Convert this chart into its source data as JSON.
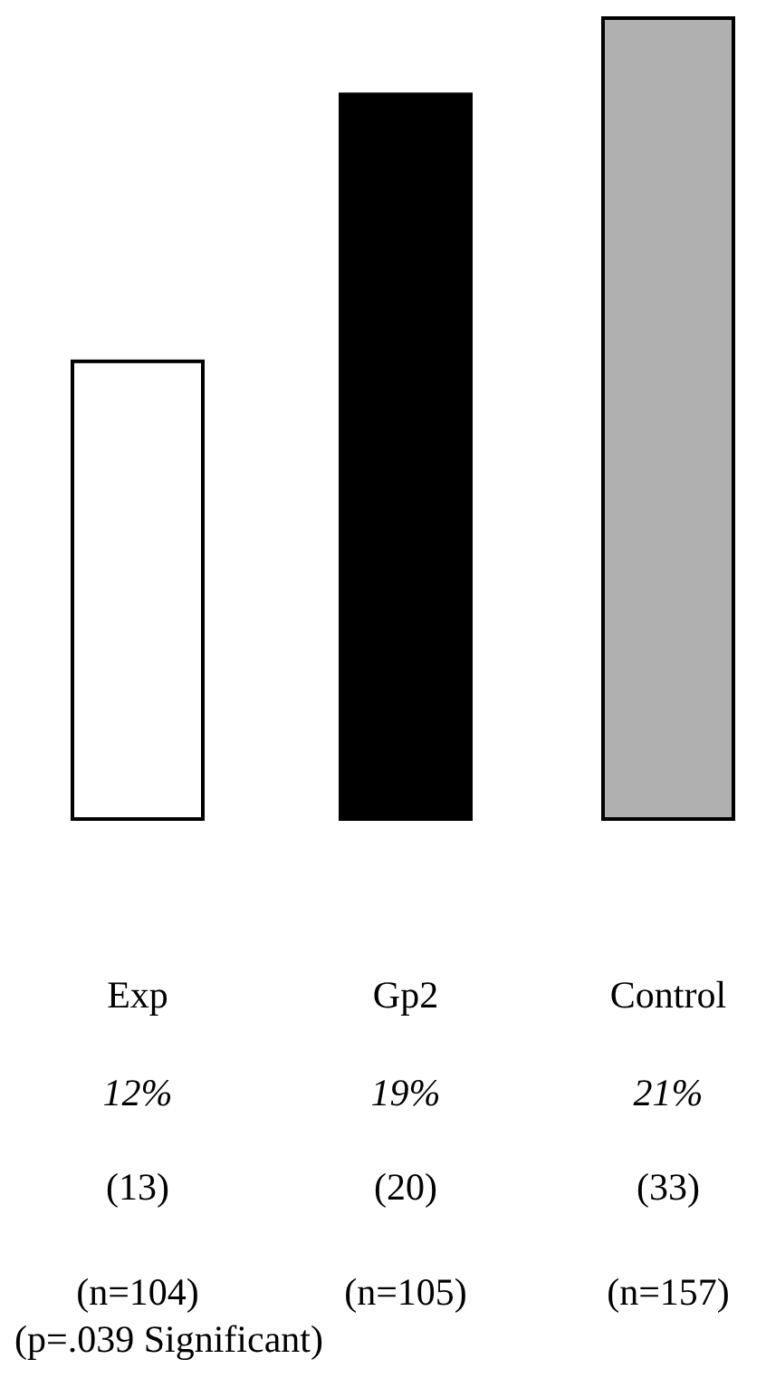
{
  "chart_data": {
    "type": "bar",
    "categories": [
      "Exp",
      "Gp2",
      "Control"
    ],
    "values": [
      12,
      19,
      21
    ],
    "colors": [
      "#ffffff",
      "#000000",
      "#b0b0b0"
    ],
    "value_labels": [
      "12%",
      "19%",
      "21%"
    ],
    "annotations": [
      "(13)",
      "(20)",
      "(33)",
      "(n=104)",
      "(n=105)",
      "(n=157)",
      "(p=.039 Significant)"
    ]
  }
}
